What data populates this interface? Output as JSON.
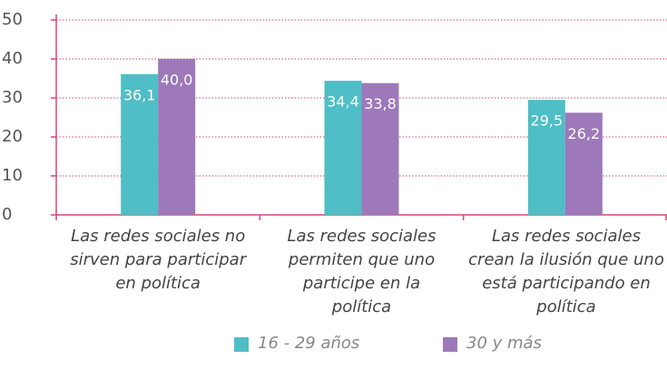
{
  "chart_data": {
    "type": "bar",
    "categories": [
      "Las redes sociales no sirven para participar en política",
      "Las redes sociales permiten que uno participe en la política",
      "Las redes sociales crean la ilusión que uno está participando en política"
    ],
    "series": [
      {
        "name": "16 - 29 años",
        "color": "#4fbec6",
        "values": [
          36.1,
          34.4,
          29.5
        ],
        "value_labels": [
          "36,1",
          "34,4",
          "29,5"
        ]
      },
      {
        "name": "30 y más",
        "color": "#9d79b9",
        "values": [
          40.0,
          33.8,
          26.2
        ],
        "value_labels": [
          "40,0",
          "33,8",
          "26,2"
        ]
      }
    ],
    "ylim": [
      0,
      50
    ],
    "yticks": [
      0,
      10,
      20,
      30,
      40,
      50
    ],
    "grid": true
  }
}
